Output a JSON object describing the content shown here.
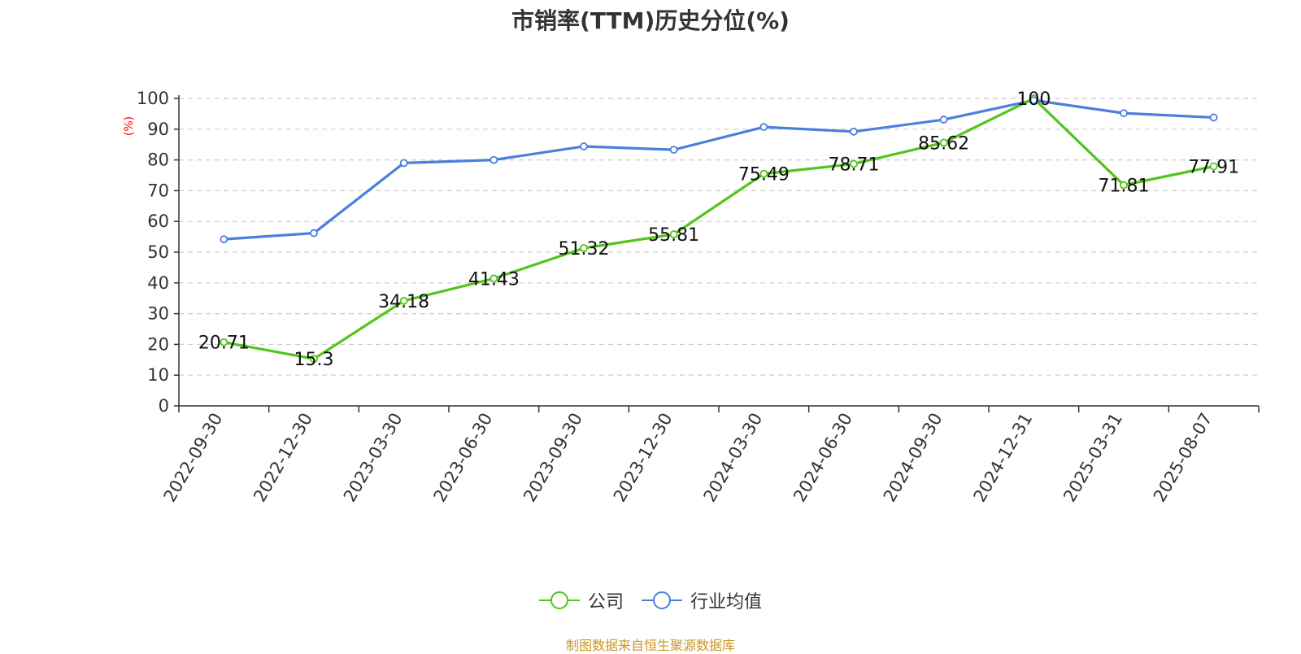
{
  "chart_data": {
    "type": "line",
    "title": "市销率(TTM)历史分位(%)",
    "ylabel": "(%)",
    "ylim": [
      0,
      100
    ],
    "yticks": [
      0,
      10,
      20,
      30,
      40,
      50,
      60,
      70,
      80,
      90,
      100
    ],
    "grid": true,
    "legend_position": "bottom",
    "categories": [
      "2022-09-30",
      "2022-12-30",
      "2023-03-30",
      "2023-06-30",
      "2023-09-30",
      "2023-12-30",
      "2024-03-30",
      "2024-06-30",
      "2024-09-30",
      "2024-12-31",
      "2025-03-31",
      "2025-08-07"
    ],
    "series": [
      {
        "name": "公司",
        "color": "#52c41a",
        "show_labels": true,
        "values": [
          20.71,
          15.3,
          34.18,
          41.43,
          51.32,
          55.81,
          75.49,
          78.71,
          85.62,
          100,
          71.81,
          77.91
        ]
      },
      {
        "name": "行业均值",
        "color": "#4a7fdc",
        "show_labels": false,
        "values": [
          54.2,
          56.2,
          79.0,
          80.0,
          84.4,
          83.3,
          90.7,
          89.2,
          93.1,
          99.4,
          95.2,
          93.8
        ]
      }
    ]
  },
  "footer": {
    "source": "制图数据来自恒生聚源数据库"
  }
}
